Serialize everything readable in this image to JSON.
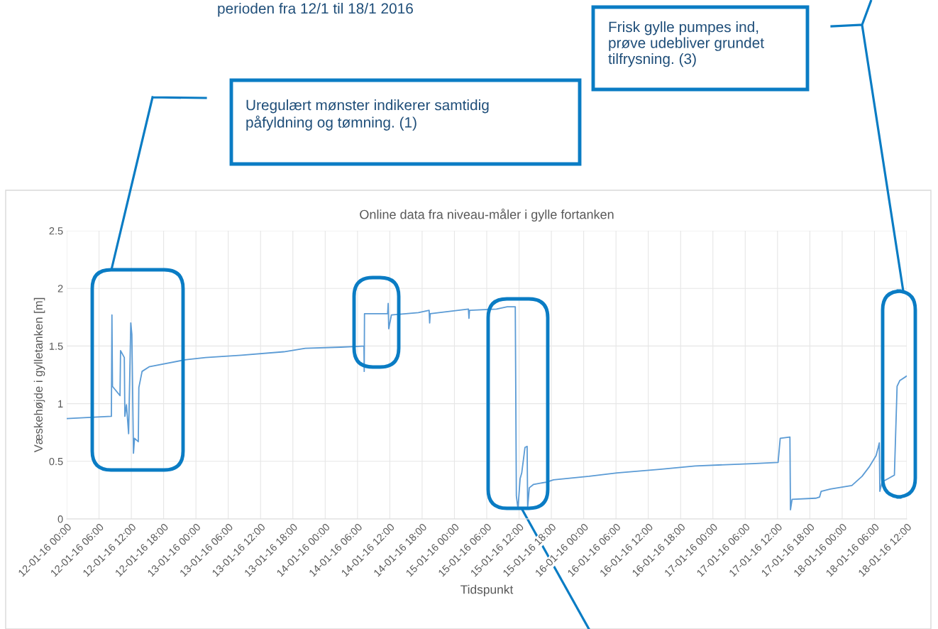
{
  "chart_data": {
    "type": "line",
    "title": "Online data fra niveau-måler i gylle fortanken",
    "xlabel": "Tidspunkt",
    "ylabel": "Væskehøjde i gylletanken [m]",
    "annotations": [
      "perioden fra 12/1 til 18/1 2016",
      "Uregulært mønster indikerer samtidig påfyldning og tømning. (1)",
      "Frisk gylle pumpes ind, prøve udebliver grundet tilfrysning. (3)"
    ],
    "x": [
      "2016-01-12T00:00",
      "2016-01-12T08:18",
      "2016-01-12T08:24",
      "2016-01-12T08:30",
      "2016-01-12T09:54",
      "2016-01-12T10:00",
      "2016-01-12T10:42",
      "2016-01-12T10:48",
      "2016-01-12T11:06",
      "2016-01-12T11:30",
      "2016-01-12T11:54",
      "2016-01-12T12:06",
      "2016-01-12T12:24",
      "2016-01-12T12:36",
      "2016-01-12T13:18",
      "2016-01-12T13:24",
      "2016-01-12T14:00",
      "2016-01-12T15:18",
      "2016-01-12T21:54",
      "2016-01-13T01:48",
      "2016-01-13T08:24",
      "2016-01-13T16:18",
      "2016-01-13T20:18",
      "2016-01-14T02:54",
      "2016-01-14T07:12",
      "2016-01-14T07:15",
      "2016-01-14T07:18",
      "2016-01-14T11:36",
      "2016-01-14T11:42",
      "2016-01-14T11:48",
      "2016-01-14T12:18",
      "2016-01-14T17:18",
      "2016-01-14T19:18",
      "2016-01-14T19:24",
      "2016-01-14T19:30",
      "2016-01-15T02:36",
      "2016-01-15T02:42",
      "2016-01-15T02:48",
      "2016-01-15T07:48",
      "2016-01-15T09:48",
      "2016-01-15T11:18",
      "2016-01-15T11:30",
      "2016-01-15T11:48",
      "2016-01-15T12:12",
      "2016-01-15T12:30",
      "2016-01-15T13:06",
      "2016-01-15T13:30",
      "2016-01-15T13:36",
      "2016-01-15T13:54",
      "2016-01-15T14:42",
      "2016-01-15T17:06",
      "2016-01-15T18:24",
      "2016-01-16T01:00",
      "2016-01-16T06:12",
      "2016-01-16T14:06",
      "2016-01-16T20:42",
      "2016-01-17T07:18",
      "2016-01-17T12:06",
      "2016-01-17T12:30",
      "2016-01-17T14:18",
      "2016-01-17T14:24",
      "2016-01-17T14:42",
      "2016-01-17T19:06",
      "2016-01-17T19:48",
      "2016-01-17T20:06",
      "2016-01-17T21:48",
      "2016-01-18T00:24",
      "2016-01-18T01:48",
      "2016-01-18T03:42",
      "2016-01-18T05:00",
      "2016-01-18T06:18",
      "2016-01-18T06:42",
      "2016-01-18T06:54",
      "2016-01-18T07:00",
      "2016-01-18T07:24",
      "2016-01-18T09:42",
      "2016-01-18T10:12",
      "2016-01-18T10:42",
      "2016-01-18T12:00"
    ],
    "series": [
      {
        "color": "#5b9bd5",
        "values": [
          0.87,
          0.89,
          1.77,
          1.15,
          1.07,
          1.46,
          1.4,
          0.89,
          0.99,
          0.74,
          1.7,
          1.6,
          0.57,
          0.7,
          0.67,
          1.14,
          1.28,
          1.32,
          1.38,
          1.4,
          1.42,
          1.45,
          1.48,
          1.49,
          1.5,
          1.28,
          1.78,
          1.78,
          1.87,
          1.65,
          1.77,
          1.79,
          1.81,
          1.7,
          1.78,
          1.82,
          1.74,
          1.81,
          1.82,
          1.84,
          1.84,
          0.2,
          0.09,
          0.35,
          0.4,
          0.62,
          0.63,
          0.1,
          0.27,
          0.3,
          0.32,
          0.34,
          0.37,
          0.4,
          0.43,
          0.46,
          0.48,
          0.49,
          0.7,
          0.71,
          0.08,
          0.17,
          0.18,
          0.19,
          0.24,
          0.26,
          0.28,
          0.29,
          0.37,
          0.45,
          0.55,
          0.62,
          0.66,
          0.24,
          0.32,
          0.38,
          1.15,
          1.2,
          1.24
        ]
      }
    ],
    "xlim": [
      "2016-01-12T00:00",
      "2016-01-18T12:00"
    ],
    "ylim": [
      0,
      2.5
    ],
    "yticks": [
      0,
      0.5,
      1,
      1.5,
      2,
      2.5
    ],
    "xticks": [
      {
        "value": "2016-01-12T00:00",
        "label": "12-01-16 00:00"
      },
      {
        "value": "2016-01-12T06:00",
        "label": "12-01-16 06:00"
      },
      {
        "value": "2016-01-12T12:00",
        "label": "12-01-16 12:00"
      },
      {
        "value": "2016-01-12T18:00",
        "label": "12-01-16 18:00"
      },
      {
        "value": "2016-01-13T00:00",
        "label": "13-01-16 00:00"
      },
      {
        "value": "2016-01-13T06:00",
        "label": "13-01-16 06:00"
      },
      {
        "value": "2016-01-13T12:00",
        "label": "13-01-16 12:00"
      },
      {
        "value": "2016-01-13T18:00",
        "label": "13-01-16 18:00"
      },
      {
        "value": "2016-01-14T00:00",
        "label": "14-01-16 00:00"
      },
      {
        "value": "2016-01-14T06:00",
        "label": "14-01-16 06:00"
      },
      {
        "value": "2016-01-14T12:00",
        "label": "14-01-16 12:00"
      },
      {
        "value": "2016-01-14T18:00",
        "label": "14-01-16 18:00"
      },
      {
        "value": "2016-01-15T00:00",
        "label": "15-01-16 00:00"
      },
      {
        "value": "2016-01-15T06:00",
        "label": "15-01-16 06:00"
      },
      {
        "value": "2016-01-15T12:00",
        "label": "15-01-16 12:00"
      },
      {
        "value": "2016-01-15T18:00",
        "label": "15-01-16 18:00"
      },
      {
        "value": "2016-01-16T00:00",
        "label": "16-01-16 00:00"
      },
      {
        "value": "2016-01-16T06:00",
        "label": "16-01-16 06:00"
      },
      {
        "value": "2016-01-16T12:00",
        "label": "16-01-16 12:00"
      },
      {
        "value": "2016-01-16T18:00",
        "label": "16-01-16 18:00"
      },
      {
        "value": "2016-01-17T00:00",
        "label": "17-01-16 00:00"
      },
      {
        "value": "2016-01-17T06:00",
        "label": "17-01-16 06:00"
      },
      {
        "value": "2016-01-17T12:00",
        "label": "17-01-16 12:00"
      },
      {
        "value": "2016-01-17T18:00",
        "label": "17-01-16 18:00"
      },
      {
        "value": "2016-01-18T00:00",
        "label": "18-01-16 00:00"
      },
      {
        "value": "2016-01-18T06:00",
        "label": "18-01-16 06:00"
      },
      {
        "value": "2016-01-18T12:00",
        "label": "18-01-16 12:00"
      }
    ],
    "grid": true,
    "legend": false,
    "marker": "none",
    "line_style": "solid"
  }
}
